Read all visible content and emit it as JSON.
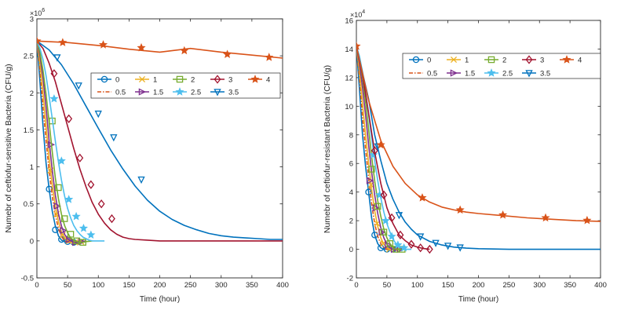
{
  "figure": {
    "xlabel_left": "Time (hour)",
    "xlabel_right": "Time (hour)"
  },
  "chart_data": [
    {
      "type": "line",
      "panel": "left",
      "title": "",
      "xlabel": "Time (hour)",
      "ylabel": "Numebr of ceftiofur-sensitive Bacteria (CFU/g)",
      "exponent_label": "×10",
      "exponent": "6",
      "xlim": [
        0,
        400
      ],
      "ylim": [
        -0.5,
        3
      ],
      "xticks": [
        0,
        50,
        100,
        150,
        200,
        250,
        300,
        350,
        400
      ],
      "yticks": [
        -0.5,
        0,
        0.5,
        1,
        1.5,
        2,
        2.5,
        3
      ],
      "legend_position": "top-right",
      "series": [
        {
          "name": "0",
          "color": "#0072BD",
          "marker": "circle",
          "dash": "solid",
          "x": [
            0,
            5,
            10,
            15,
            20,
            25,
            30,
            35,
            40,
            45,
            50,
            55,
            60,
            65,
            70
          ],
          "y": [
            2.7,
            2.15,
            1.55,
            1.05,
            0.7,
            0.4,
            0.2,
            0.07,
            0.01,
            -0.01,
            -0.02,
            -0.02,
            -0.02,
            -0.01,
            0
          ],
          "mx": [
            20,
            30,
            40,
            50,
            60
          ],
          "my": [
            0.7,
            0.15,
            0.02,
            -0.01,
            -0.02
          ]
        },
        {
          "name": "0.5",
          "color": "#D95319",
          "marker": "none",
          "dash": "dashdot",
          "x": [
            0,
            5,
            10,
            15,
            20,
            25,
            30,
            35,
            40,
            45,
            50,
            55,
            60,
            70
          ],
          "y": [
            2.7,
            2.3,
            1.8,
            1.35,
            0.95,
            0.6,
            0.35,
            0.17,
            0.06,
            0.0,
            -0.02,
            -0.02,
            -0.02,
            0
          ],
          "mx": [],
          "my": []
        },
        {
          "name": "1",
          "color": "#EDB120",
          "marker": "x",
          "dash": "solid",
          "x": [
            0,
            5,
            10,
            15,
            20,
            25,
            30,
            35,
            40,
            45,
            50,
            55,
            60,
            65,
            70,
            75
          ],
          "y": [
            2.7,
            2.4,
            2.0,
            1.55,
            1.12,
            0.76,
            0.47,
            0.26,
            0.12,
            0.04,
            0.0,
            -0.02,
            -0.02,
            -0.02,
            -0.01,
            0
          ],
          "mx": [
            22,
            32,
            42,
            52,
            62,
            72
          ],
          "my": [
            0.95,
            0.36,
            0.08,
            0.0,
            -0.02,
            -0.01
          ]
        },
        {
          "name": "1.5",
          "color": "#7E2F8E",
          "marker": "tri-right",
          "dash": "solid",
          "x": [
            0,
            5,
            10,
            15,
            20,
            25,
            30,
            35,
            40,
            45,
            50,
            55,
            60,
            65,
            70,
            75,
            80
          ],
          "y": [
            2.7,
            2.5,
            2.2,
            1.8,
            1.35,
            0.95,
            0.62,
            0.37,
            0.2,
            0.09,
            0.03,
            0.0,
            -0.02,
            -0.02,
            -0.02,
            -0.01,
            0
          ],
          "mx": [
            23,
            33,
            43,
            53,
            63,
            73
          ],
          "my": [
            1.3,
            0.47,
            0.14,
            0.02,
            -0.02,
            -0.01
          ]
        },
        {
          "name": "2",
          "color": "#77AC30",
          "marker": "square",
          "dash": "solid",
          "x": [
            0,
            5,
            10,
            15,
            20,
            25,
            30,
            35,
            40,
            45,
            50,
            55,
            60,
            65,
            70,
            75,
            80,
            90
          ],
          "y": [
            2.7,
            2.55,
            2.3,
            1.98,
            1.6,
            1.2,
            0.85,
            0.57,
            0.36,
            0.21,
            0.11,
            0.04,
            0.01,
            -0.01,
            -0.02,
            -0.02,
            -0.01,
            0
          ],
          "mx": [
            25,
            35,
            45,
            55,
            65,
            75
          ],
          "my": [
            1.62,
            0.72,
            0.3,
            0.09,
            0.0,
            -0.02
          ]
        },
        {
          "name": "2.5",
          "color": "#4DBEEE",
          "marker": "star",
          "dash": "solid",
          "x": [
            0,
            5,
            10,
            15,
            20,
            25,
            30,
            35,
            40,
            45,
            50,
            55,
            60,
            65,
            70,
            75,
            80,
            85,
            90,
            95,
            100,
            110
          ],
          "y": [
            2.7,
            2.6,
            2.45,
            2.23,
            1.95,
            1.65,
            1.35,
            1.07,
            0.82,
            0.61,
            0.44,
            0.31,
            0.21,
            0.14,
            0.09,
            0.05,
            0.03,
            0.01,
            0.0,
            0.0,
            0.0,
            0
          ],
          "mx": [
            28,
            40,
            52,
            64,
            76,
            88
          ],
          "my": [
            1.92,
            1.08,
            0.56,
            0.33,
            0.17,
            0.08
          ]
        },
        {
          "name": "3",
          "color": "#A2142F",
          "marker": "diamond",
          "dash": "solid",
          "x": [
            0,
            10,
            20,
            30,
            40,
            50,
            60,
            70,
            80,
            90,
            100,
            110,
            120,
            130,
            140,
            150,
            160,
            180,
            200,
            240,
            300,
            400
          ],
          "y": [
            2.7,
            2.6,
            2.4,
            2.15,
            1.85,
            1.55,
            1.25,
            0.97,
            0.73,
            0.52,
            0.36,
            0.24,
            0.15,
            0.09,
            0.05,
            0.03,
            0.02,
            0.01,
            0.0,
            0.0,
            0.0,
            0
          ],
          "mx": [
            28,
            52,
            70,
            88,
            105,
            122
          ],
          "my": [
            2.26,
            1.65,
            1.12,
            0.76,
            0.5,
            0.3
          ]
        },
        {
          "name": "3.5",
          "color": "#0072BD",
          "marker": "tri-down",
          "dash": "solid",
          "x": [
            0,
            20,
            40,
            60,
            80,
            100,
            120,
            140,
            160,
            180,
            200,
            220,
            240,
            260,
            280,
            300,
            320,
            340,
            360,
            380,
            400
          ],
          "y": [
            2.7,
            2.58,
            2.38,
            2.12,
            1.82,
            1.52,
            1.23,
            0.97,
            0.74,
            0.55,
            0.4,
            0.29,
            0.21,
            0.15,
            0.1,
            0.07,
            0.05,
            0.04,
            0.03,
            0.02,
            0.02
          ],
          "mx": [
            33,
            68,
            100,
            125,
            170
          ],
          "my": [
            2.48,
            2.1,
            1.72,
            1.4,
            0.83
          ]
        },
        {
          "name": "4",
          "color": "#D95319",
          "marker": "star",
          "dash": "solid",
          "x": [
            0,
            50,
            100,
            150,
            200,
            250,
            300,
            350,
            400
          ],
          "y": [
            2.7,
            2.68,
            2.64,
            2.59,
            2.55,
            2.6,
            2.55,
            2.51,
            2.47
          ],
          "mx": [
            0,
            42,
            108,
            170,
            240,
            310,
            378
          ],
          "my": [
            2.7,
            2.68,
            2.65,
            2.61,
            2.57,
            2.52,
            2.48
          ]
        }
      ]
    },
    {
      "type": "line",
      "panel": "right",
      "title": "",
      "xlabel": "Time (hour)",
      "ylabel": "Numebr of ceftiofur-resistant Bacteria (CFU/g)",
      "exponent_label": "×10",
      "exponent": "4",
      "xlim": [
        0,
        400
      ],
      "ylim": [
        -2,
        16
      ],
      "xticks": [
        0,
        50,
        100,
        150,
        200,
        250,
        300,
        350,
        400
      ],
      "yticks": [
        -2,
        0,
        2,
        4,
        6,
        8,
        10,
        12,
        14,
        16
      ],
      "legend_position": "top-right",
      "series": [
        {
          "name": "0",
          "color": "#0072BD",
          "marker": "circle",
          "dash": "solid",
          "x": [
            0,
            5,
            10,
            15,
            20,
            25,
            30,
            35,
            40,
            45,
            50,
            55,
            60
          ],
          "y": [
            14.2,
            11.2,
            8.0,
            5.8,
            4.0,
            2.2,
            1.0,
            0.4,
            0.1,
            0.0,
            0.0,
            0.0,
            0.0
          ],
          "mx": [
            20,
            30,
            40,
            50,
            60
          ],
          "my": [
            4.0,
            1.0,
            0.1,
            0.0,
            0.0
          ]
        },
        {
          "name": "0.5",
          "color": "#D95319",
          "marker": "none",
          "dash": "dashdot",
          "x": [
            0,
            5,
            10,
            15,
            20,
            25,
            30,
            35,
            40,
            45,
            50,
            55,
            60,
            65
          ],
          "y": [
            14.2,
            12.0,
            9.2,
            7.0,
            5.0,
            3.2,
            1.8,
            0.9,
            0.4,
            0.1,
            0.0,
            0.0,
            0.0,
            0.0
          ],
          "mx": [],
          "my": []
        },
        {
          "name": "1",
          "color": "#EDB120",
          "marker": "x",
          "dash": "solid",
          "x": [
            0,
            5,
            10,
            15,
            20,
            25,
            30,
            35,
            40,
            45,
            50,
            55,
            60,
            65,
            70
          ],
          "y": [
            14.2,
            12.5,
            10.2,
            8.0,
            6.0,
            4.2,
            2.7,
            1.6,
            0.8,
            0.35,
            0.1,
            0.0,
            0.0,
            0.0,
            0.0
          ],
          "mx": [
            24,
            34,
            44,
            54,
            64
          ],
          "my": [
            4.5,
            1.8,
            0.4,
            0.0,
            0.0
          ]
        },
        {
          "name": "1.5",
          "color": "#7E2F8E",
          "marker": "tri-right",
          "dash": "solid",
          "x": [
            0,
            5,
            10,
            15,
            20,
            25,
            30,
            35,
            40,
            45,
            50,
            55,
            60,
            65,
            70,
            75
          ],
          "y": [
            14.2,
            13.0,
            11.3,
            9.4,
            7.3,
            5.4,
            3.8,
            2.5,
            1.5,
            0.8,
            0.35,
            0.1,
            0.0,
            0.0,
            0.0,
            0.0
          ],
          "mx": [
            22,
            32,
            42,
            52,
            62,
            72
          ],
          "my": [
            4.8,
            2.9,
            1.2,
            0.3,
            0.0,
            0.0
          ]
        },
        {
          "name": "2",
          "color": "#77AC30",
          "marker": "square",
          "dash": "solid",
          "x": [
            0,
            5,
            10,
            15,
            20,
            25,
            30,
            35,
            40,
            45,
            50,
            55,
            60,
            65,
            70,
            75,
            80
          ],
          "y": [
            14.2,
            13.3,
            12.0,
            10.3,
            8.4,
            6.5,
            4.8,
            3.4,
            2.3,
            1.4,
            0.8,
            0.4,
            0.1,
            0.0,
            0.0,
            0.0,
            0.0
          ],
          "mx": [
            25,
            35,
            45,
            55,
            65,
            75
          ],
          "my": [
            5.6,
            3.0,
            1.2,
            0.4,
            0.0,
            0.0
          ]
        },
        {
          "name": "2.5",
          "color": "#4DBEEE",
          "marker": "star",
          "dash": "solid",
          "x": [
            0,
            5,
            10,
            15,
            20,
            25,
            30,
            35,
            40,
            45,
            50,
            55,
            60,
            65,
            70,
            80,
            90
          ],
          "y": [
            14.2,
            13.5,
            12.4,
            11.0,
            9.4,
            7.8,
            6.2,
            4.8,
            3.6,
            2.6,
            1.8,
            1.2,
            0.7,
            0.4,
            0.2,
            0.0,
            0.0
          ],
          "mx": [
            28,
            38,
            48,
            58,
            68,
            78
          ],
          "my": [
            6.6,
            3.8,
            2.0,
            0.9,
            0.3,
            0.1
          ]
        },
        {
          "name": "3",
          "color": "#A2142F",
          "marker": "diamond",
          "dash": "solid",
          "x": [
            0,
            10,
            20,
            30,
            40,
            50,
            60,
            70,
            80,
            90,
            100,
            110,
            120
          ],
          "y": [
            14.2,
            12.2,
            9.5,
            6.8,
            4.6,
            2.9,
            1.8,
            1.0,
            0.6,
            0.3,
            0.15,
            0.05,
            0.0
          ],
          "mx": [
            30,
            45,
            58,
            72,
            90,
            105,
            120
          ],
          "my": [
            6.9,
            3.8,
            2.2,
            1.0,
            0.35,
            0.1,
            0.0
          ]
        },
        {
          "name": "3.5",
          "color": "#0072BD",
          "marker": "tri-down",
          "dash": "solid",
          "x": [
            0,
            20,
            30,
            40,
            50,
            60,
            70,
            80,
            90,
            100,
            120,
            140,
            160,
            180,
            200,
            250,
            300,
            350,
            400
          ],
          "y": [
            14.2,
            10.5,
            8.0,
            6.2,
            4.6,
            3.5,
            2.6,
            1.9,
            1.4,
            1.0,
            0.55,
            0.3,
            0.15,
            0.08,
            0.04,
            0.0,
            0.0,
            0.0,
            0.0
          ],
          "mx": [
            35,
            70,
            105,
            130,
            150,
            170
          ],
          "my": [
            7.2,
            2.4,
            0.9,
            0.45,
            0.25,
            0.13
          ]
        },
        {
          "name": "4",
          "color": "#D95319",
          "marker": "star",
          "dash": "solid",
          "x": [
            0,
            20,
            40,
            60,
            80,
            100,
            120,
            140,
            160,
            180,
            200,
            240,
            280,
            320,
            360,
            400
          ],
          "y": [
            14.2,
            10.4,
            7.6,
            5.8,
            4.6,
            3.8,
            3.3,
            2.95,
            2.75,
            2.6,
            2.5,
            2.35,
            2.2,
            2.1,
            2.0,
            1.95
          ],
          "mx": [
            0,
            40,
            108,
            170,
            240,
            310,
            378
          ],
          "my": [
            14.2,
            7.3,
            3.6,
            2.75,
            2.4,
            2.2,
            2.02
          ]
        }
      ]
    }
  ]
}
